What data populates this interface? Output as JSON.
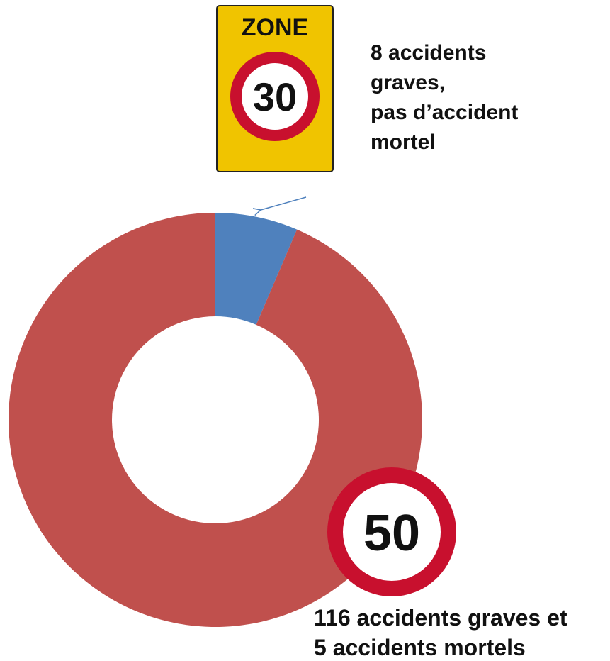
{
  "chart_data": {
    "type": "donut",
    "categories": [
      null,
      null
    ],
    "values": [
      8,
      116
    ],
    "colors": [
      "#4f81bd",
      "#c0504d"
    ],
    "signs": [
      {
        "top": "ZONE",
        "speed": "30"
      },
      {
        "speed": "50"
      }
    ],
    "annotations": [
      [
        "8 accidents",
        "graves,",
        "pas d’accident",
        "mortel"
      ],
      [
        "116 accidents graves et",
        "5 accidents mortels"
      ]
    ]
  }
}
